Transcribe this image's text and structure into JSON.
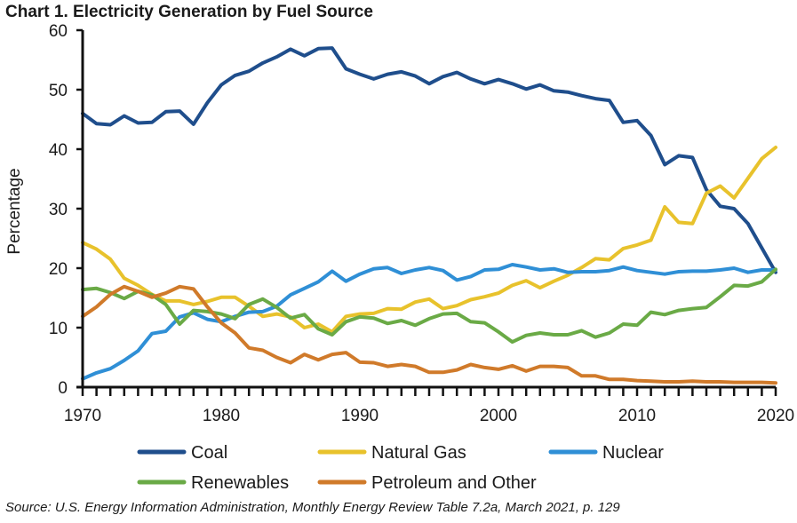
{
  "chart_data": {
    "type": "line",
    "title": "Chart 1. Electricity Generation by Fuel Source",
    "xlabel": "",
    "ylabel": "Percentage",
    "xlim": [
      1970,
      2020
    ],
    "ylim": [
      0,
      60
    ],
    "x_ticks": [
      "1970",
      "1980",
      "1990",
      "2000",
      "2010",
      "2020"
    ],
    "y_ticks": [
      "0",
      "10",
      "20",
      "30",
      "40",
      "50",
      "60"
    ],
    "grid": false,
    "legend_position": "bottom",
    "x": [
      1970,
      1971,
      1972,
      1973,
      1974,
      1975,
      1976,
      1977,
      1978,
      1979,
      1980,
      1981,
      1982,
      1983,
      1984,
      1985,
      1986,
      1987,
      1988,
      1989,
      1990,
      1991,
      1992,
      1993,
      1994,
      1995,
      1996,
      1997,
      1998,
      1999,
      2000,
      2001,
      2002,
      2003,
      2004,
      2005,
      2006,
      2007,
      2008,
      2009,
      2010,
      2011,
      2012,
      2013,
      2014,
      2015,
      2016,
      2017,
      2018,
      2019,
      2020
    ],
    "series": [
      {
        "name": "Coal",
        "color": "#1f4e8c",
        "values": [
          46.0,
          44.3,
          44.1,
          45.6,
          44.4,
          44.5,
          46.3,
          46.4,
          44.2,
          47.8,
          50.8,
          52.4,
          53.1,
          54.5,
          55.5,
          56.8,
          55.7,
          56.9,
          57.0,
          53.5,
          52.6,
          51.8,
          52.6,
          53.0,
          52.3,
          51.0,
          52.2,
          52.9,
          51.8,
          51.0,
          51.7,
          51.0,
          50.1,
          50.8,
          49.8,
          49.6,
          49.0,
          48.5,
          48.2,
          44.5,
          44.8,
          42.3,
          37.4,
          38.9,
          38.6,
          33.2,
          30.4,
          30.0,
          27.5,
          23.4,
          19.3
        ]
      },
      {
        "name": "Natural Gas",
        "color": "#e8c22c",
        "values": [
          24.3,
          23.2,
          21.5,
          18.3,
          17.1,
          15.6,
          14.5,
          14.5,
          13.9,
          14.4,
          15.1,
          15.1,
          13.6,
          11.9,
          12.3,
          11.8,
          10.0,
          10.6,
          9.3,
          11.9,
          12.3,
          12.4,
          13.2,
          13.1,
          14.3,
          14.8,
          13.2,
          13.7,
          14.7,
          15.2,
          15.8,
          17.1,
          17.9,
          16.7,
          17.8,
          18.8,
          20.1,
          21.6,
          21.4,
          23.3,
          23.9,
          24.7,
          30.3,
          27.7,
          27.5,
          32.6,
          33.8,
          31.8,
          35.1,
          38.4,
          40.3
        ]
      },
      {
        "name": "Nuclear",
        "color": "#2f8fd6",
        "values": [
          1.4,
          2.4,
          3.1,
          4.5,
          6.1,
          9.0,
          9.4,
          11.8,
          12.5,
          11.4,
          11.0,
          11.9,
          12.6,
          12.7,
          13.6,
          15.5,
          16.6,
          17.7,
          19.5,
          17.8,
          19.0,
          19.9,
          20.1,
          19.1,
          19.7,
          20.1,
          19.6,
          18.0,
          18.6,
          19.7,
          19.8,
          20.6,
          20.2,
          19.7,
          19.9,
          19.3,
          19.4,
          19.4,
          19.6,
          20.2,
          19.6,
          19.3,
          19.0,
          19.4,
          19.5,
          19.5,
          19.7,
          20.0,
          19.3,
          19.7,
          19.7
        ]
      },
      {
        "name": "Renewables",
        "color": "#6aaa46",
        "values": [
          16.4,
          16.6,
          15.9,
          14.9,
          16.1,
          15.5,
          13.9,
          10.6,
          12.9,
          12.7,
          12.3,
          11.5,
          13.9,
          14.8,
          13.4,
          11.6,
          12.2,
          9.8,
          8.8,
          11.0,
          11.8,
          11.6,
          10.7,
          11.2,
          10.4,
          11.5,
          12.3,
          12.4,
          11.0,
          10.8,
          9.3,
          7.6,
          8.7,
          9.1,
          8.8,
          8.8,
          9.5,
          8.4,
          9.1,
          10.6,
          10.4,
          12.6,
          12.2,
          12.9,
          13.2,
          13.4,
          15.2,
          17.1,
          17.0,
          17.7,
          19.8
        ]
      },
      {
        "name": "Petroleum and Other",
        "color": "#d07a2a",
        "values": [
          11.9,
          13.5,
          15.6,
          16.9,
          16.1,
          15.1,
          15.8,
          16.9,
          16.5,
          13.5,
          10.8,
          9.1,
          6.6,
          6.2,
          5.0,
          4.1,
          5.5,
          4.6,
          5.5,
          5.8,
          4.2,
          4.1,
          3.5,
          3.8,
          3.5,
          2.5,
          2.5,
          2.9,
          3.8,
          3.3,
          3.0,
          3.6,
          2.7,
          3.5,
          3.5,
          3.3,
          1.9,
          1.9,
          1.3,
          1.3,
          1.1,
          1.0,
          0.9,
          0.9,
          1.0,
          0.9,
          0.9,
          0.8,
          0.8,
          0.8,
          0.7
        ]
      }
    ]
  },
  "source": "Source: U.S. Energy Information Administration, Monthly Energy Review Table 7.2a, March 2021, p. 129"
}
